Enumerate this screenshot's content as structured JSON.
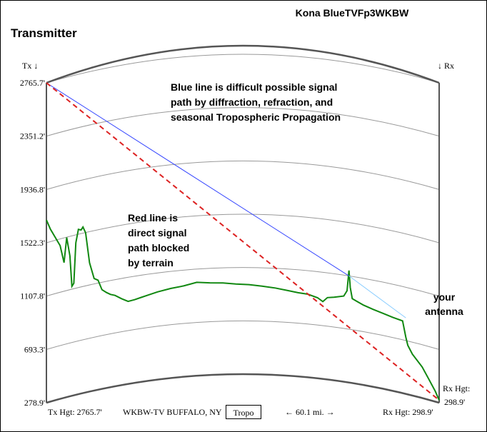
{
  "header": {
    "title": "Kona BlueTVFp3WKBW",
    "left_title": "Transmitter",
    "tx_marker": "Tx ↓",
    "rx_marker": "↓ Rx"
  },
  "annotations": {
    "blue_line_note": [
      "Blue line is difficult possible signal",
      "path by diffraction, refraction, and",
      "seasonal Tropospheric Propagation"
    ],
    "red_line_note": [
      "Red line is",
      "direct signal",
      "path blocked",
      "by terrain"
    ],
    "antenna_note": [
      "your",
      "antenna"
    ]
  },
  "footer": {
    "tx_height": "Tx Hgt: 2765.7'",
    "station": "WKBW-TV BUFFALO, NY",
    "tropo_button": "Tropo",
    "distance": "← 60.1 mi. →",
    "rx_height": "Rx Hgt: 298.9'",
    "rx_hgt_label": "Rx Hgt:",
    "rx_hgt_value": "298.9'"
  },
  "colors": {
    "terrain": "#118811",
    "blue_path": "#3344ff",
    "light_blue_path": "#88ccff",
    "red_path": "#dd2222",
    "earth_curve": "#555555",
    "height_arc": "#999999"
  },
  "chart_data": {
    "type": "line",
    "x_unit": "mi",
    "distance_mi": 60.1,
    "ylim": [
      278.9,
      2765.7
    ],
    "y_ticks": [
      "2765.7'",
      "2351.2'",
      "1936.8'",
      "1522.3'",
      "1107.8'",
      "693.3'",
      "278.9'"
    ],
    "tx_height_ft": 2765.7,
    "rx_height_ft": 298.9,
    "series": [
      {
        "key": "terrain",
        "x": [
          0,
          0.6,
          1.3,
          2.1,
          2.7,
          3.1,
          3.6,
          3.9,
          4.2,
          4.5,
          4.9,
          5.3,
          5.6,
          6.0,
          6.6,
          7.3,
          7.9,
          8.5,
          9.2,
          9.8,
          10.5,
          11.5,
          12.5,
          13.5,
          14.5,
          15.5,
          17.0,
          19.0,
          21.0,
          23.0,
          25.0,
          27.0,
          29.0,
          31.0,
          33.0,
          35.0,
          37.0,
          38.5,
          40.0,
          41.5,
          42.3,
          43.0,
          44.0,
          45.5,
          46.0,
          46.3,
          46.5,
          46.8,
          47.5,
          48.5,
          50.0,
          51.5,
          53.0,
          54.5,
          55.0,
          55.3,
          56.0,
          57.5,
          58.5,
          59.5,
          60.1
        ],
        "y": [
          1700,
          1620,
          1550,
          1470,
          1330,
          1520,
          1370,
          1130,
          1150,
          1460,
          1560,
          1550,
          1570,
          1520,
          1280,
          1150,
          1130,
          1050,
          1020,
          1000,
          985,
          950,
          920,
          925,
          935,
          945,
          960,
          975,
          985,
          1005,
          995,
          990,
          980,
          975,
          965,
          955,
          940,
          930,
          925,
          905,
          880,
          915,
          925,
          945,
          990,
          1150,
          1020,
          935,
          920,
          900,
          880,
          865,
          850,
          840,
          720,
          660,
          600,
          520,
          440,
          360,
          298.9
        ]
      },
      {
        "key": "blue_path",
        "x": [
          0,
          46.3
        ],
        "y": [
          2765.7,
          1107.8
        ]
      },
      {
        "key": "light_blue_path",
        "x": [
          46.3,
          55.0
        ],
        "y": [
          1107.8,
          870
        ]
      },
      {
        "key": "red_path",
        "x": [
          0,
          60.1
        ],
        "y": [
          2765.7,
          298.9
        ]
      }
    ]
  }
}
